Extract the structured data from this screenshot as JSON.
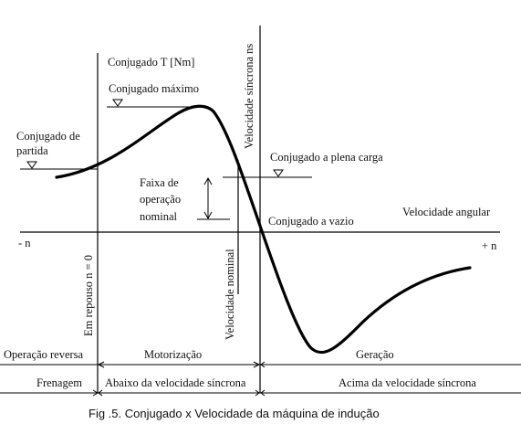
{
  "diagram": {
    "y_axis_label": "Conjugado T  [Nm]",
    "x_axis_label": "Velocidade angular",
    "x_neg_label": "- n",
    "x_pos_label": "+ n",
    "sync_speed_label": "Velocidade síncrona ns",
    "nominal_speed_label": "Velocidade nominal",
    "rest_label": "Em repouso n = 0",
    "max_torque_label": "Conjugado máximo",
    "starting_torque_label_1": "Conjugado de",
    "starting_torque_label_2": "partida",
    "full_load_label": "Conjugado a plena carga",
    "no_load_label": "Conjugado a vazio",
    "operating_band_label_1": "Faixa de",
    "operating_band_label_2": "operação",
    "operating_band_label_3": "nominal",
    "regions_row1": [
      "Operação reversa",
      "Motorização",
      "Geração"
    ],
    "regions_row2": [
      "Frenagem",
      "Abaixo da velocidade síncrona",
      "Acima da velocidade síncrona"
    ]
  },
  "caption": "Fig .5. Conjugado x Velocidade da máquina de indução"
}
